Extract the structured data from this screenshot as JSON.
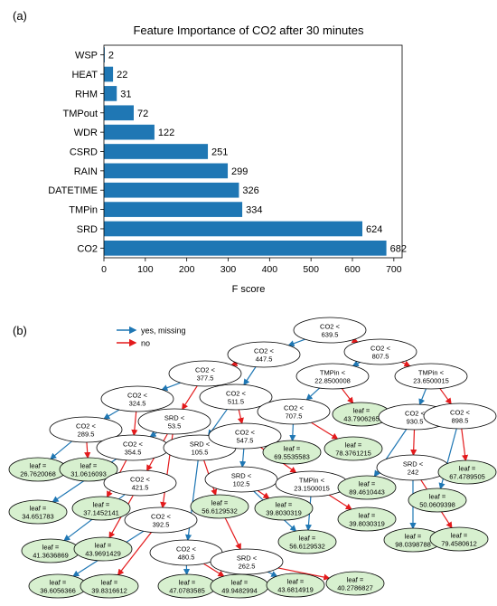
{
  "panel_a_label": "(a)",
  "panel_b_label": "(b)",
  "colors": {
    "bar": "#1f77b4",
    "yes_edge": "#1f77b4",
    "no_edge": "#e31a1c",
    "leaf_fill": "#d7f0cf"
  },
  "chart_data": {
    "type": "bar",
    "orientation": "horizontal",
    "title": "Feature Importance of CO2 after 30 minutes",
    "xlabel": "F score",
    "ylabel": "",
    "xlim": [
      0,
      720
    ],
    "xticks": [
      0,
      100,
      200,
      300,
      400,
      500,
      600,
      700
    ],
    "categories": [
      "WSP",
      "HEAT",
      "RHM",
      "TMPout",
      "WDR",
      "CSRD",
      "RAIN",
      "DATETIME",
      "TMPin",
      "SRD",
      "CO2"
    ],
    "values": [
      2,
      22,
      31,
      72,
      122,
      251,
      299,
      326,
      334,
      624,
      682
    ],
    "data_labels": [
      "2",
      "22",
      "31",
      "72",
      "122",
      "251",
      "299",
      "326",
      "334",
      "624",
      "682"
    ],
    "grid": false
  },
  "tree": {
    "legend": [
      {
        "label": "yes, missing",
        "color": "#1f77b4"
      },
      {
        "label": "no",
        "color": "#e31a1c"
      }
    ],
    "nodes": [
      {
        "id": "n0",
        "type": "split",
        "lines": [
          "CO2 <",
          "639.5"
        ]
      },
      {
        "id": "n1",
        "type": "split",
        "lines": [
          "CO2 <",
          "447.5"
        ]
      },
      {
        "id": "n2",
        "type": "split",
        "lines": [
          "CO2 <",
          "807.5"
        ]
      },
      {
        "id": "n3",
        "type": "split",
        "lines": [
          "CO2 <",
          "377.5"
        ]
      },
      {
        "id": "n4",
        "type": "split",
        "lines": [
          "CO2 <",
          "511.5"
        ]
      },
      {
        "id": "n5",
        "type": "split",
        "lines": [
          "TMPin <",
          "22.8500008"
        ]
      },
      {
        "id": "n6",
        "type": "split",
        "lines": [
          "TMPin <",
          "23.6500015"
        ]
      },
      {
        "id": "n7",
        "type": "split",
        "lines": [
          "CO2 <",
          "324.5"
        ]
      },
      {
        "id": "n8",
        "type": "split",
        "lines": [
          "SRD <",
          "53.5"
        ]
      },
      {
        "id": "n9",
        "type": "split",
        "lines": [
          "CO2 <",
          "707.5"
        ]
      },
      {
        "id": "n10",
        "type": "leaf",
        "lines": [
          "leaf =",
          "43.7906265"
        ]
      },
      {
        "id": "n11",
        "type": "split",
        "lines": [
          "CO2 <",
          "930.5"
        ]
      },
      {
        "id": "n12",
        "type": "split",
        "lines": [
          "CO2 <",
          "898.5"
        ]
      },
      {
        "id": "n13",
        "type": "split",
        "lines": [
          "CO2 <",
          "289.5"
        ]
      },
      {
        "id": "n14",
        "type": "split",
        "lines": [
          "CO2 <",
          "354.5"
        ]
      },
      {
        "id": "n15",
        "type": "split",
        "lines": [
          "SRD <",
          "105.5"
        ]
      },
      {
        "id": "n16",
        "type": "split",
        "lines": [
          "CO2 <",
          "547.5"
        ]
      },
      {
        "id": "n17",
        "type": "leaf",
        "lines": [
          "leaf =",
          "69.5535583"
        ]
      },
      {
        "id": "n18",
        "type": "leaf",
        "lines": [
          "leaf =",
          "78.3761215"
        ]
      },
      {
        "id": "n19",
        "type": "leaf",
        "lines": [
          "leaf =",
          "26.7620068"
        ]
      },
      {
        "id": "n20",
        "type": "leaf",
        "lines": [
          "leaf =",
          "31.0616093"
        ]
      },
      {
        "id": "n21",
        "type": "split",
        "lines": [
          "CO2 <",
          "421.5"
        ]
      },
      {
        "id": "n22",
        "type": "split",
        "lines": [
          "SRD <",
          "102.5"
        ]
      },
      {
        "id": "n23",
        "type": "split",
        "lines": [
          "TMPin <",
          "23.1500015"
        ]
      },
      {
        "id": "n24",
        "type": "leaf",
        "lines": [
          "leaf =",
          "89.4610443"
        ]
      },
      {
        "id": "n25",
        "type": "split",
        "lines": [
          "SRD <",
          "242"
        ]
      },
      {
        "id": "n26",
        "type": "leaf",
        "lines": [
          "leaf =",
          "67.4789505"
        ]
      },
      {
        "id": "n27",
        "type": "leaf",
        "lines": [
          "leaf =",
          "34.651783"
        ]
      },
      {
        "id": "n28",
        "type": "leaf",
        "lines": [
          "leaf =",
          "37.1452141"
        ]
      },
      {
        "id": "n29",
        "type": "leaf",
        "lines": [
          "leaf =",
          "56.6129532"
        ]
      },
      {
        "id": "n30",
        "type": "leaf",
        "lines": [
          "leaf =",
          "39.8030319"
        ]
      },
      {
        "id": "n31",
        "type": "leaf",
        "lines": [
          "leaf =",
          "50.0609398"
        ]
      },
      {
        "id": "n32",
        "type": "leaf",
        "lines": [
          "leaf =",
          "39.8030319"
        ]
      },
      {
        "id": "n33",
        "type": "split",
        "lines": [
          "CO2 <",
          "392.5"
        ]
      },
      {
        "id": "n34",
        "type": "leaf",
        "lines": [
          "leaf =",
          "41.3636869"
        ]
      },
      {
        "id": "n35",
        "type": "leaf",
        "lines": [
          "leaf =",
          "43.9691429"
        ]
      },
      {
        "id": "n36",
        "type": "leaf",
        "lines": [
          "leaf =",
          "56.6129532"
        ]
      },
      {
        "id": "n37",
        "type": "leaf",
        "lines": [
          "leaf =",
          "98.0398788"
        ]
      },
      {
        "id": "n38",
        "type": "leaf",
        "lines": [
          "leaf =",
          "79.4580612"
        ]
      },
      {
        "id": "n39",
        "type": "split",
        "lines": [
          "CO2 <",
          "480.5"
        ]
      },
      {
        "id": "n40",
        "type": "split",
        "lines": [
          "SRD <",
          "262.5"
        ]
      },
      {
        "id": "n41",
        "type": "leaf",
        "lines": [
          "leaf =",
          "36.6056366"
        ]
      },
      {
        "id": "n42",
        "type": "leaf",
        "lines": [
          "leaf =",
          "39.8316612"
        ]
      },
      {
        "id": "n43",
        "type": "leaf",
        "lines": [
          "leaf =",
          "47.0783585"
        ]
      },
      {
        "id": "n44",
        "type": "leaf",
        "lines": [
          "leaf =",
          "49.9482994"
        ]
      },
      {
        "id": "n45",
        "type": "leaf",
        "lines": [
          "leaf =",
          "43.6814919"
        ]
      },
      {
        "id": "n46",
        "type": "leaf",
        "lines": [
          "leaf =",
          "40.2786827"
        ]
      }
    ],
    "edges": [
      {
        "from": "n0",
        "to": "n1",
        "yes": true
      },
      {
        "from": "n0",
        "to": "n2",
        "yes": false
      },
      {
        "from": "n1",
        "to": "n3",
        "yes": false
      },
      {
        "from": "n1",
        "to": "n4",
        "yes": true
      },
      {
        "from": "n2",
        "to": "n5",
        "yes": true
      },
      {
        "from": "n2",
        "to": "n6",
        "yes": false
      },
      {
        "from": "n3",
        "to": "n7",
        "yes": true
      },
      {
        "from": "n3",
        "to": "n8",
        "yes": false
      },
      {
        "from": "n4",
        "to": "n15",
        "yes": true
      },
      {
        "from": "n4",
        "to": "n16",
        "yes": false
      },
      {
        "from": "n5",
        "to": "n9",
        "yes": true
      },
      {
        "from": "n5",
        "to": "n10",
        "yes": false
      },
      {
        "from": "n6",
        "to": "n11",
        "yes": true
      },
      {
        "from": "n6",
        "to": "n12",
        "yes": false
      },
      {
        "from": "n7",
        "to": "n13",
        "yes": true
      },
      {
        "from": "n7",
        "to": "n14",
        "yes": false
      },
      {
        "from": "n8",
        "to": "n14",
        "yes": true
      },
      {
        "from": "n8",
        "to": "n21",
        "yes": false
      },
      {
        "from": "n9",
        "to": "n17",
        "yes": true
      },
      {
        "from": "n9",
        "to": "n18",
        "yes": false
      },
      {
        "from": "n11",
        "to": "n24",
        "yes": true
      },
      {
        "from": "n11",
        "to": "n25",
        "yes": false
      },
      {
        "from": "n12",
        "to": "n31",
        "yes": true
      },
      {
        "from": "n12",
        "to": "n26",
        "yes": false
      },
      {
        "from": "n13",
        "to": "n19",
        "yes": true
      },
      {
        "from": "n13",
        "to": "n20",
        "yes": false
      },
      {
        "from": "n14",
        "to": "n27",
        "yes": true
      },
      {
        "from": "n14",
        "to": "n28",
        "yes": false
      },
      {
        "from": "n15",
        "to": "n39",
        "yes": true
      },
      {
        "from": "n15",
        "to": "n29",
        "yes": false
      },
      {
        "from": "n16",
        "to": "n22",
        "yes": true
      },
      {
        "from": "n16",
        "to": "n23",
        "yes": false
      },
      {
        "from": "n21",
        "to": "n34",
        "yes": true
      },
      {
        "from": "n21",
        "to": "n35",
        "yes": false
      },
      {
        "from": "n8",
        "to": "n33",
        "yes": false
      },
      {
        "from": "n22",
        "to": "n36",
        "yes": true
      },
      {
        "from": "n22",
        "to": "n30",
        "yes": false
      },
      {
        "from": "n23",
        "to": "n36",
        "yes": true
      },
      {
        "from": "n23",
        "to": "n32",
        "yes": false
      },
      {
        "from": "n25",
        "to": "n37",
        "yes": true
      },
      {
        "from": "n25",
        "to": "n38",
        "yes": false
      },
      {
        "from": "n33",
        "to": "n41",
        "yes": true
      },
      {
        "from": "n33",
        "to": "n42",
        "yes": false
      },
      {
        "from": "n39",
        "to": "n43",
        "yes": true
      },
      {
        "from": "n39",
        "to": "n44",
        "yes": false
      },
      {
        "from": "n40",
        "to": "n45",
        "yes": true
      },
      {
        "from": "n40",
        "to": "n46",
        "yes": false
      },
      {
        "from": "n29",
        "to": "n40",
        "yes": false
      }
    ]
  }
}
